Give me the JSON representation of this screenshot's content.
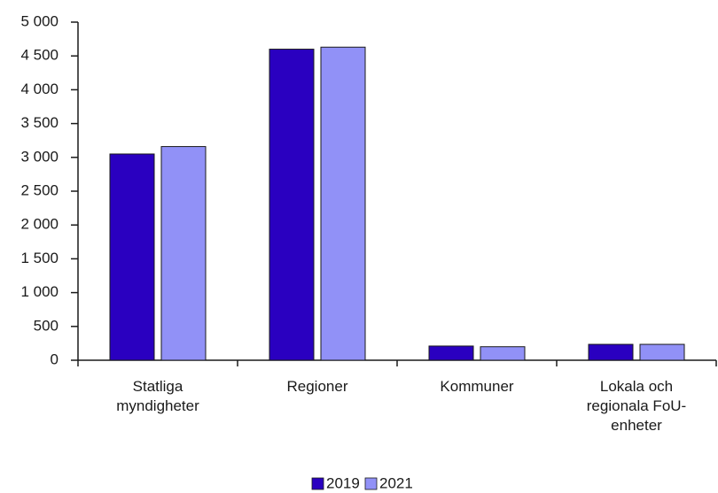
{
  "chart_data": {
    "type": "bar",
    "categories": [
      "Statliga myndigheter",
      "Regioner",
      "Kommuner",
      "Lokala och regionala FoU-enheter"
    ],
    "series": [
      {
        "name": "2019",
        "color": "#2a00c0",
        "values": [
          3050,
          4600,
          210,
          235
        ]
      },
      {
        "name": "2021",
        "color": "#9191f7",
        "values": [
          3160,
          4630,
          200,
          235
        ]
      }
    ],
    "ylim": [
      0,
      5000
    ],
    "yticks": [
      0,
      500,
      {
        "value": 1000,
        "label": "1 000"
      },
      {
        "value": 1500,
        "label": "1 500"
      },
      {
        "value": 2000,
        "label": "2 000"
      },
      {
        "value": 2500,
        "label": "2 500"
      },
      {
        "value": 3000,
        "label": "3 000"
      },
      {
        "value": 3500,
        "label": "3 500"
      },
      {
        "value": 4000,
        "label": "4 000"
      },
      {
        "value": 4500,
        "label": "4 500"
      },
      {
        "value": 5000,
        "label": "5 000"
      }
    ],
    "grid": false,
    "legend": "bottom"
  }
}
